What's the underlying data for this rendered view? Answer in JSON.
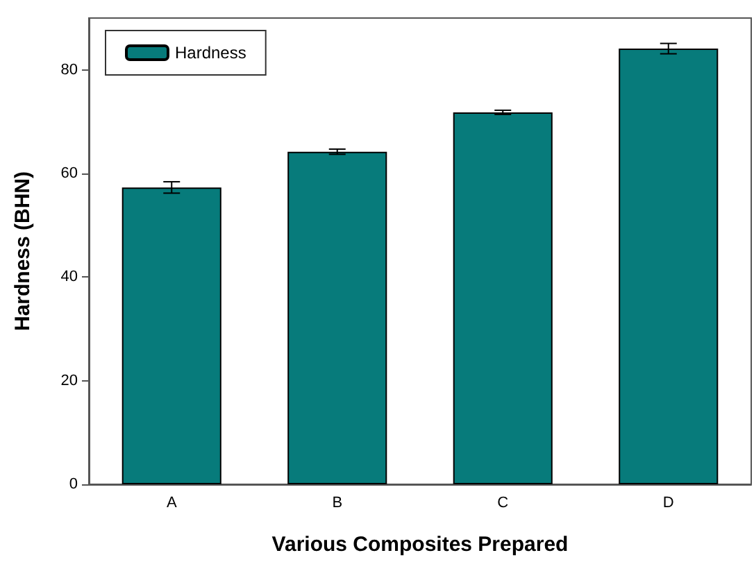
{
  "chart_data": {
    "type": "bar",
    "xlabel": "Various Composites Prepared",
    "ylabel": "Hardness (BHN)",
    "categories": [
      "A",
      "B",
      "C",
      "D"
    ],
    "series": [
      {
        "name": "Hardness",
        "color": "#077b7b",
        "values": [
          57.3,
          64.2,
          71.8,
          84.1
        ],
        "errors": [
          1.1,
          0.5,
          0.4,
          1.0
        ]
      }
    ],
    "ylim": [
      0,
      90
    ],
    "yticks": [
      0,
      20,
      40,
      60,
      80
    ],
    "grid": false,
    "legend": "top left"
  }
}
